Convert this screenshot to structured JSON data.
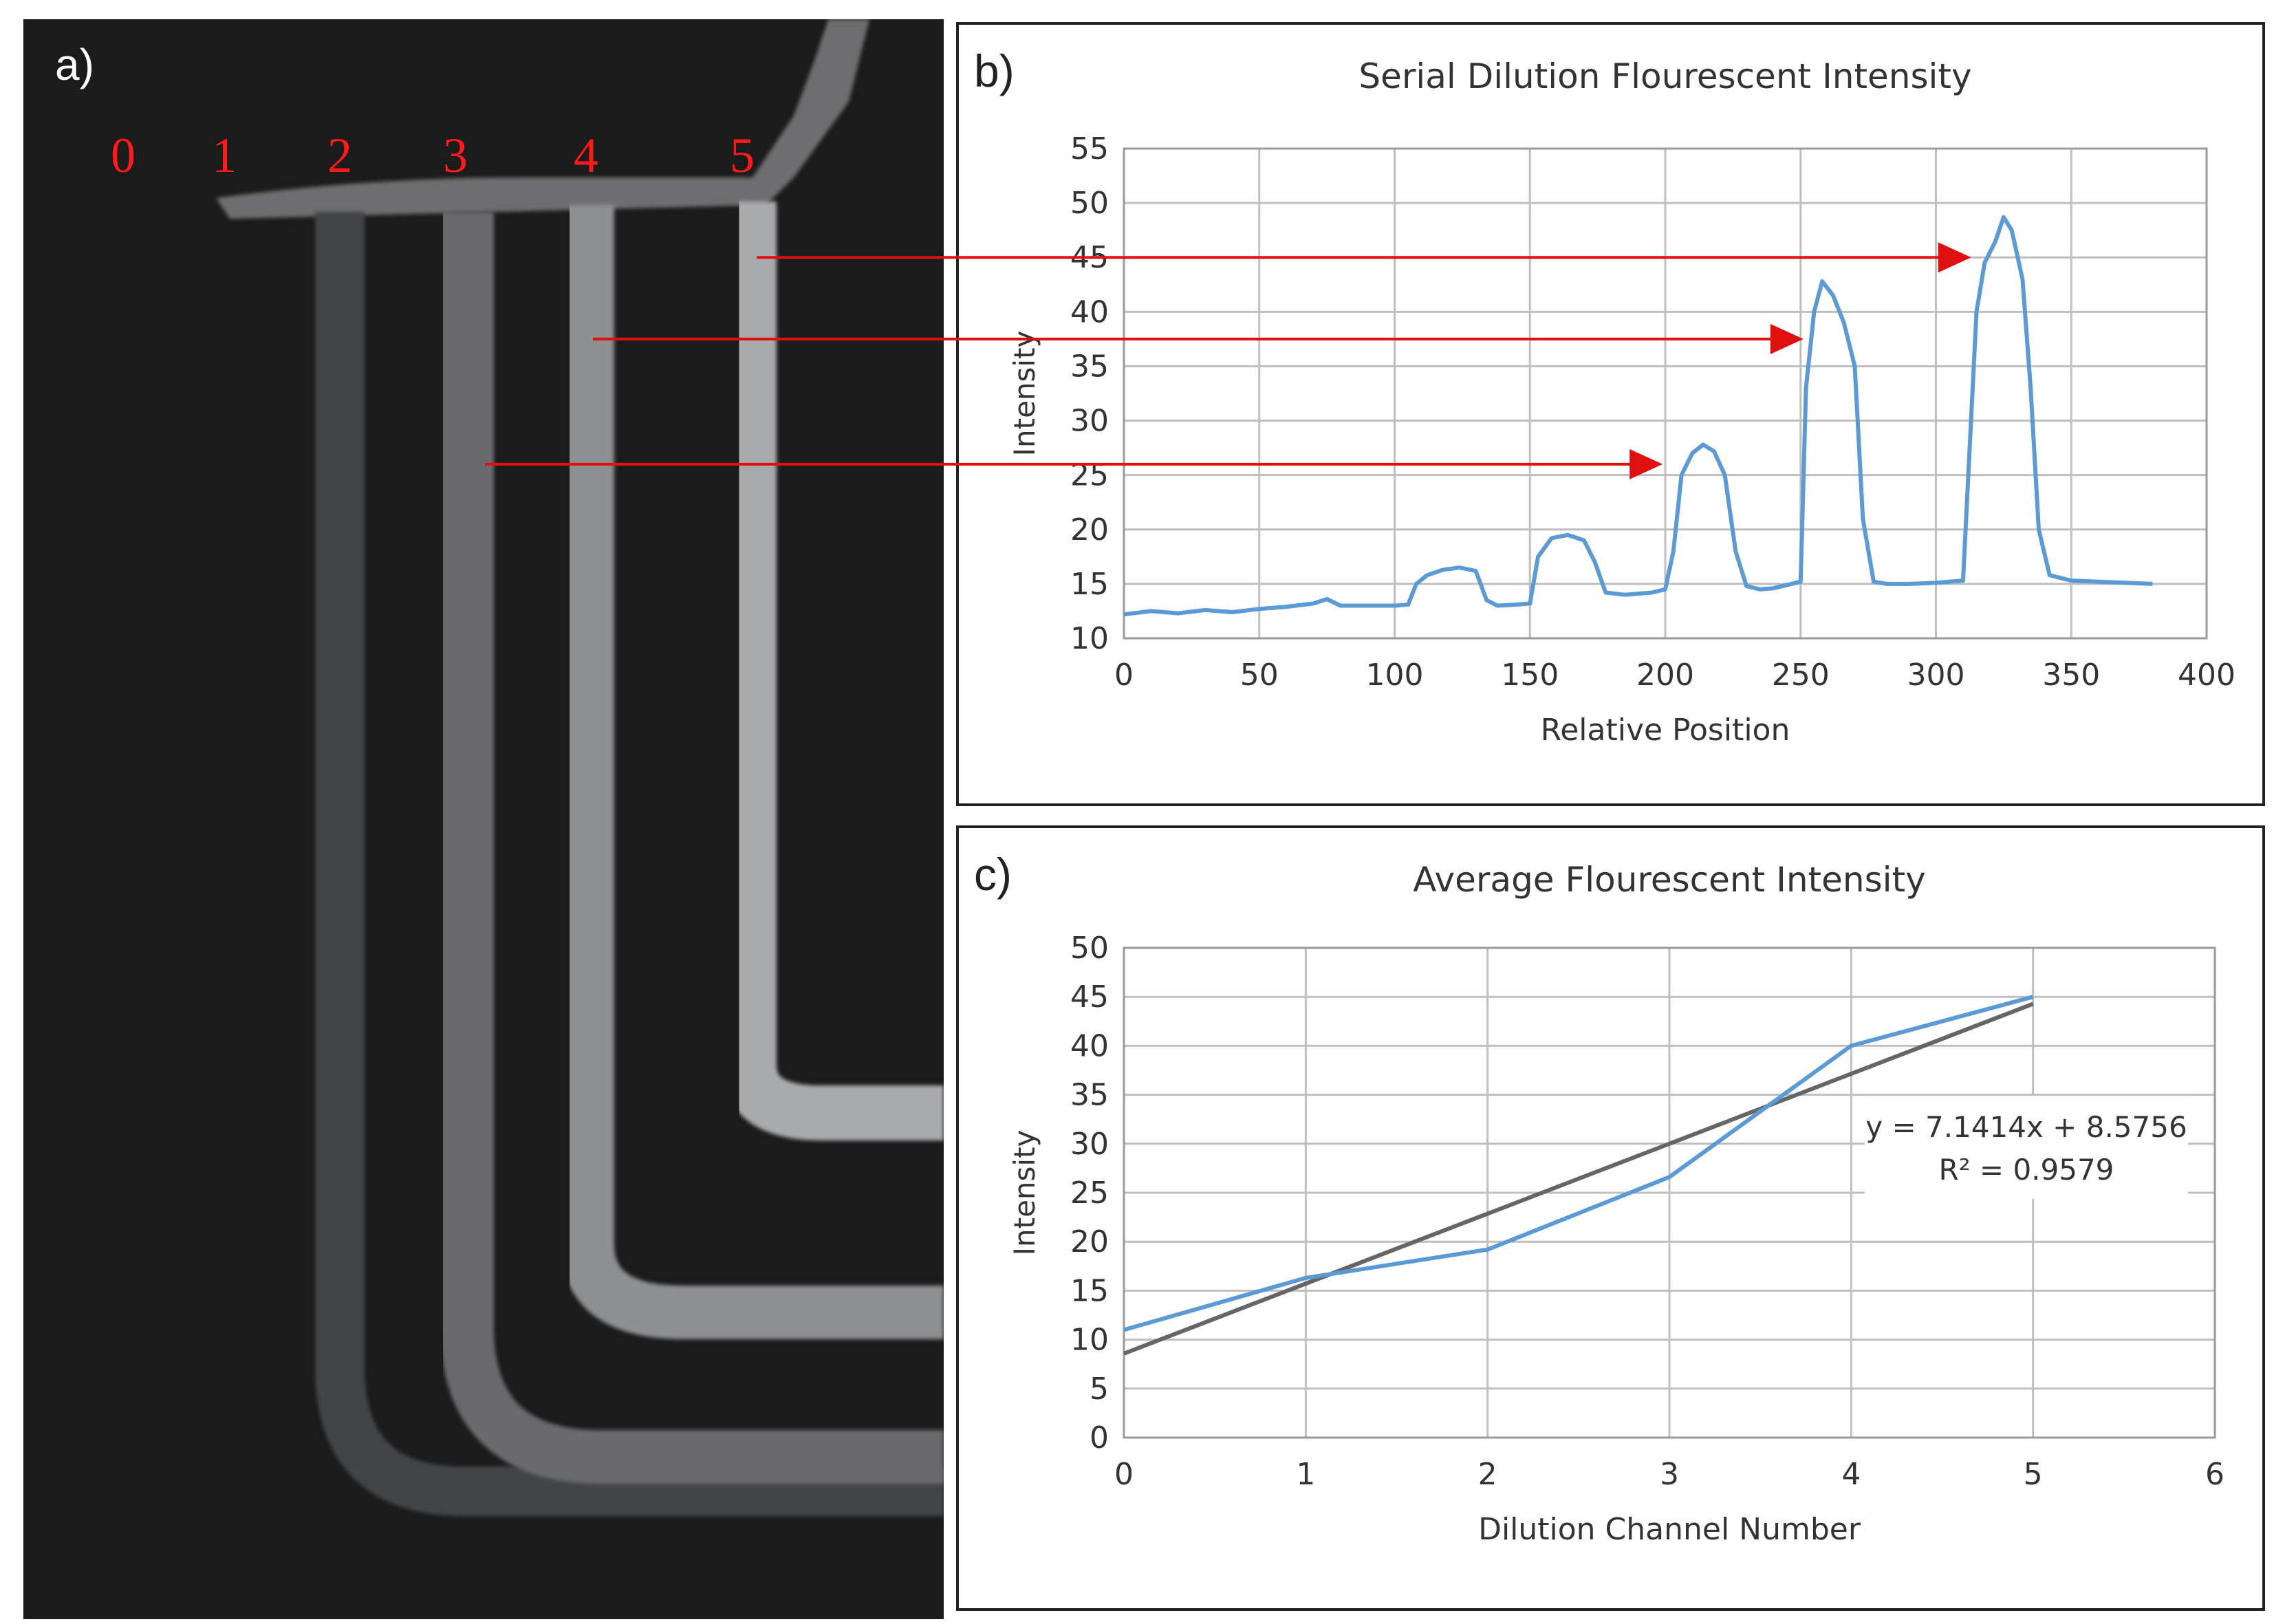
{
  "figure": {
    "panel_a": {
      "label": "a)",
      "channel_labels": [
        "0",
        "1",
        "2",
        "3",
        "4",
        "5"
      ],
      "label_color": "#ff1a1a",
      "arrow_color": "#e01010",
      "background_color": "#1b1b1c",
      "channel_color": "#b5b5b5"
    }
  },
  "chart_data": [
    {
      "panel_label": "b)",
      "type": "line",
      "title": "Serial Dilution Flourescent Intensity",
      "xlabel": "Relative Position",
      "ylabel": "Intensity",
      "xlim": [
        0,
        400
      ],
      "ylim": [
        10,
        55
      ],
      "xticks": [
        0,
        50,
        100,
        150,
        200,
        250,
        300,
        350,
        400
      ],
      "yticks": [
        10,
        15,
        20,
        25,
        30,
        35,
        40,
        45,
        50,
        55
      ],
      "grid": true,
      "line_color": "#5b9bd5",
      "series": [
        {
          "name": "Intensity",
          "x": [
            0,
            10,
            20,
            30,
            40,
            50,
            60,
            70,
            75,
            80,
            90,
            100,
            105,
            108,
            112,
            118,
            124,
            130,
            134,
            138,
            145,
            150,
            153,
            158,
            164,
            170,
            174,
            178,
            185,
            195,
            200,
            203,
            206,
            210,
            214,
            218,
            222,
            226,
            230,
            235,
            240,
            250,
            252,
            255,
            258,
            262,
            266,
            270,
            273,
            277,
            282,
            290,
            300,
            310,
            315,
            318,
            322,
            325,
            328,
            332,
            335,
            338,
            342,
            350,
            360,
            370,
            380
          ],
          "y": [
            12.2,
            12.5,
            12.3,
            12.6,
            12.4,
            12.7,
            12.9,
            13.2,
            13.6,
            13.0,
            13.0,
            13.0,
            13.1,
            15.0,
            15.8,
            16.3,
            16.5,
            16.2,
            13.5,
            13.0,
            13.1,
            13.2,
            17.5,
            19.2,
            19.5,
            19.0,
            17.0,
            14.2,
            14.0,
            14.2,
            14.5,
            18.0,
            25.0,
            27.0,
            27.8,
            27.2,
            25.0,
            18.0,
            14.8,
            14.5,
            14.6,
            15.2,
            33.0,
            40.0,
            42.8,
            41.5,
            39.0,
            35.0,
            21.0,
            15.2,
            15.0,
            15.0,
            15.1,
            15.3,
            40.0,
            44.5,
            46.5,
            48.7,
            47.5,
            43.0,
            33.0,
            20.0,
            15.8,
            15.3,
            15.2,
            15.1,
            15.0
          ]
        }
      ]
    },
    {
      "panel_label": "c)",
      "type": "line",
      "title": "Average Flourescent Intensity",
      "xlabel": "Dilution Channel Number",
      "ylabel": "Intensity",
      "xlim": [
        0,
        6
      ],
      "ylim": [
        0,
        50
      ],
      "xticks": [
        0,
        1,
        2,
        3,
        4,
        5,
        6
      ],
      "yticks": [
        0,
        5,
        10,
        15,
        20,
        25,
        30,
        35,
        40,
        45,
        50
      ],
      "grid": true,
      "series": [
        {
          "name": "Average intensity",
          "color": "#5b9bd5",
          "x": [
            0,
            1,
            2,
            3,
            4,
            5
          ],
          "y": [
            11,
            16.3,
            19.2,
            26.6,
            40,
            45
          ]
        }
      ],
      "trendline": {
        "color": "#666666",
        "slope": 7.1414,
        "intercept": 8.5756,
        "x": [
          0,
          5
        ],
        "equation": "y = 7.1414x + 8.5756",
        "r_squared": "R² = 0.9579"
      }
    }
  ]
}
